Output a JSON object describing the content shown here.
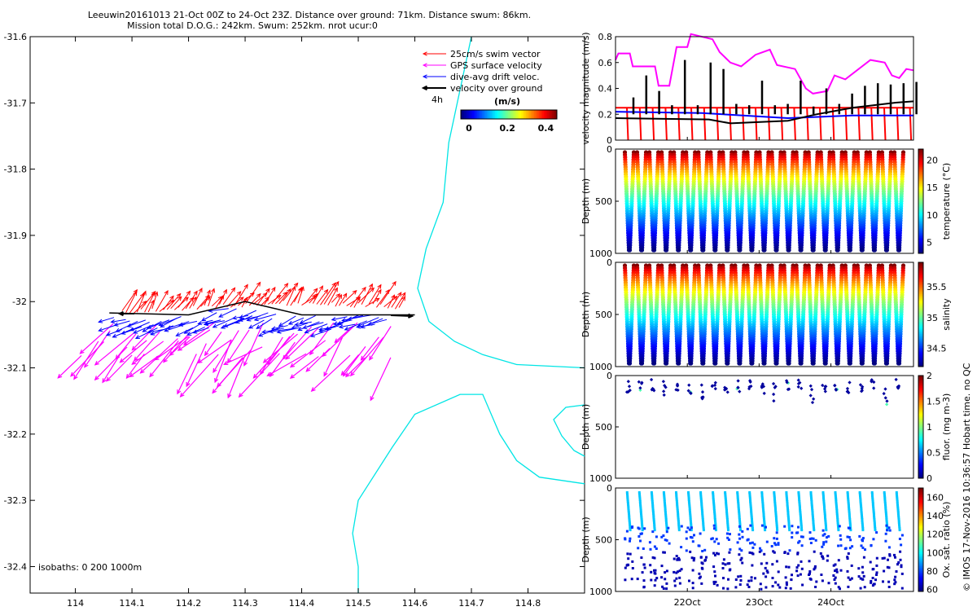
{
  "header": {
    "line1": "Leeuwin20161013 21-Oct 00Z to 24-Oct 23Z. Distance over ground: 71km. Distance swum: 86km.",
    "line2": "Mission total D.O.G.: 242km. Swum: 252km. nrot ucur:0"
  },
  "footer_note": "© IMOS 17-Nov-2016 10:36:57 Hobart time. no QC",
  "colors": {
    "swim": "#ff0000",
    "gps": "#ff00ff",
    "drift": "#0000ff",
    "ground": "#000000",
    "coast": "#00e5e5"
  },
  "chart_data": [
    {
      "id": "track-map",
      "type": "scatter",
      "xlabel": "",
      "ylabel": "",
      "xlim": [
        113.92,
        114.9
      ],
      "ylim": [
        -32.44,
        -31.6
      ],
      "xticks": [
        "114",
        "114.1",
        "114.2",
        "114.3",
        "114.4",
        "114.5",
        "114.6",
        "114.7",
        "114.8"
      ],
      "xtick_values": [
        114,
        114.1,
        114.2,
        114.3,
        114.4,
        114.5,
        114.6,
        114.7,
        114.8
      ],
      "yticks": [
        "-31.6",
        "-31.7",
        "-31.8",
        "-31.9",
        "-32",
        "-32.1",
        "-32.2",
        "-32.3",
        "-32.4"
      ],
      "ytick_values": [
        -31.6,
        -31.7,
        -31.8,
        -31.9,
        -32,
        -32.1,
        -32.2,
        -32.3,
        -32.4
      ],
      "legend": {
        "position": "top-right",
        "items": [
          {
            "label": "25cm/s swim vector",
            "color": "#ff0000"
          },
          {
            "label": "GPS surface velocity",
            "color": "#ff00ff"
          },
          {
            "label": "dive-avg drift veloc.",
            "color": "#0000ff"
          },
          {
            "label": "velocity over ground",
            "color": "#000000"
          }
        ],
        "scale_label": "4h"
      },
      "colorbar": {
        "title": "(m/s)",
        "ticks": [
          "0",
          "0.2",
          "0.4"
        ],
        "range": [
          0,
          0.5
        ]
      },
      "isobaths_label": "isobaths: 0   200  1000m",
      "track": [
        [
          114.06,
          -32.017
        ],
        [
          114.2,
          -32.02
        ],
        [
          114.3,
          -32.0
        ],
        [
          114.4,
          -32.02
        ],
        [
          114.5,
          -32.02
        ],
        [
          114.6,
          -32.02
        ]
      ],
      "coastline": [
        [
          114.7,
          -31.6
        ],
        [
          114.68,
          -31.68
        ],
        [
          114.66,
          -31.76
        ],
        [
          114.65,
          -31.85
        ],
        [
          114.62,
          -31.92
        ],
        [
          114.605,
          -31.98
        ],
        [
          114.625,
          -32.03
        ],
        [
          114.67,
          -32.06
        ],
        [
          114.72,
          -32.08
        ],
        [
          114.78,
          -32.095
        ],
        [
          114.9,
          -32.1
        ]
      ],
      "coastline2": [
        [
          114.5,
          -32.44
        ],
        [
          114.5,
          -32.4
        ],
        [
          114.49,
          -32.35
        ],
        [
          114.5,
          -32.3
        ],
        [
          114.56,
          -32.22
        ],
        [
          114.6,
          -32.17
        ],
        [
          114.68,
          -32.14
        ],
        [
          114.72,
          -32.14
        ],
        [
          114.75,
          -32.2
        ],
        [
          114.78,
          -32.24
        ],
        [
          114.82,
          -32.265
        ],
        [
          114.9,
          -32.275
        ]
      ]
    },
    {
      "id": "velocity-panel",
      "type": "line",
      "ylabel": "velocity magnitude (m/s)",
      "yticks": [
        "0",
        "0.2",
        "0.4",
        "0.6",
        "0.8"
      ],
      "ytick_values": [
        0,
        0.2,
        0.4,
        0.6,
        0.8
      ],
      "ylim": [
        0,
        0.8
      ],
      "xlim": [
        0,
        4.15
      ],
      "series": [
        {
          "color": "#ff00ff",
          "values": [
            [
              0,
              0.62
            ],
            [
              0.04,
              0.67
            ],
            [
              0.2,
              0.67
            ],
            [
              0.24,
              0.57
            ],
            [
              0.55,
              0.57
            ],
            [
              0.6,
              0.42
            ],
            [
              0.75,
              0.42
            ],
            [
              0.85,
              0.72
            ],
            [
              1.0,
              0.72
            ],
            [
              1.05,
              0.82
            ],
            [
              1.35,
              0.78
            ],
            [
              1.45,
              0.68
            ],
            [
              1.6,
              0.6
            ],
            [
              1.75,
              0.57
            ],
            [
              1.95,
              0.66
            ],
            [
              2.15,
              0.7
            ],
            [
              2.25,
              0.58
            ],
            [
              2.5,
              0.55
            ],
            [
              2.65,
              0.4
            ],
            [
              2.75,
              0.36
            ],
            [
              2.95,
              0.38
            ],
            [
              3.05,
              0.5
            ],
            [
              3.2,
              0.47
            ],
            [
              3.55,
              0.62
            ],
            [
              3.75,
              0.6
            ],
            [
              3.85,
              0.5
            ],
            [
              3.95,
              0.48
            ],
            [
              4.05,
              0.55
            ],
            [
              4.15,
              0.54
            ]
          ]
        },
        {
          "color": "#ff0000",
          "values": [
            [
              0,
              0.25
            ],
            [
              4.15,
              0.25
            ]
          ]
        },
        {
          "color": "#0000ff",
          "values": [
            [
              0,
              0.22
            ],
            [
              1.2,
              0.21
            ],
            [
              2.4,
              0.17
            ],
            [
              3.3,
              0.19
            ],
            [
              4.15,
              0.19
            ]
          ]
        },
        {
          "color": "#000000",
          "values": [
            [
              0,
              0.17
            ],
            [
              1.3,
              0.16
            ],
            [
              1.6,
              0.13
            ],
            [
              2.4,
              0.15
            ],
            [
              2.8,
              0.2
            ],
            [
              3.3,
              0.25
            ],
            [
              3.9,
              0.29
            ],
            [
              4.15,
              0.3
            ]
          ]
        }
      ],
      "spike_peaks": [
        0.33,
        0.5,
        0.38,
        0.27,
        0.62,
        0.27,
        0.6,
        0.55,
        0.28,
        0.27,
        0.46,
        0.27,
        0.28,
        0.46,
        0.26,
        0.4,
        0.28,
        0.36,
        0.42,
        0.44,
        0.43,
        0.44,
        0.45
      ]
    },
    {
      "id": "temperature-panel",
      "type": "scatter",
      "ylabel": "Depth (m)",
      "yticks": [
        "0",
        "500",
        "1000"
      ],
      "colorbar_label": "temperature (°C)",
      "colorbar_ticks": [
        "5",
        "10",
        "15",
        "20"
      ],
      "colorbar_range": [
        3,
        22
      ],
      "profiles": 23
    },
    {
      "id": "salinity-panel",
      "type": "scatter",
      "ylabel": "Depth (m)",
      "yticks": [
        "0",
        "500",
        "1000"
      ],
      "colorbar_label": "salinity",
      "colorbar_ticks": [
        "34.5",
        "35",
        "35.5"
      ],
      "colorbar_range": [
        34.2,
        35.9
      ],
      "profiles": 23
    },
    {
      "id": "fluorescence-panel",
      "type": "scatter",
      "ylabel": "Depth (m)",
      "yticks": [
        "0",
        "500",
        "1000"
      ],
      "colorbar_label": "fluor. (mg m-3)",
      "colorbar_ticks": [
        "0",
        "0.5",
        "1",
        "1.5",
        "2"
      ],
      "colorbar_range": [
        0,
        2
      ],
      "profiles": 23
    },
    {
      "id": "oxygen-panel",
      "type": "scatter",
      "ylabel": "Depth (m)",
      "yticks": [
        "0",
        "500",
        "1000"
      ],
      "colorbar_label": "Ox. sat. ratio (%)",
      "colorbar_ticks": [
        "60",
        "80",
        "100",
        "120",
        "140",
        "160"
      ],
      "colorbar_range": [
        58,
        170
      ],
      "profiles": 23,
      "xticks": [
        "22Oct",
        "23Oct",
        "24Oct"
      ],
      "xtick_values": [
        1,
        2,
        3
      ]
    }
  ]
}
